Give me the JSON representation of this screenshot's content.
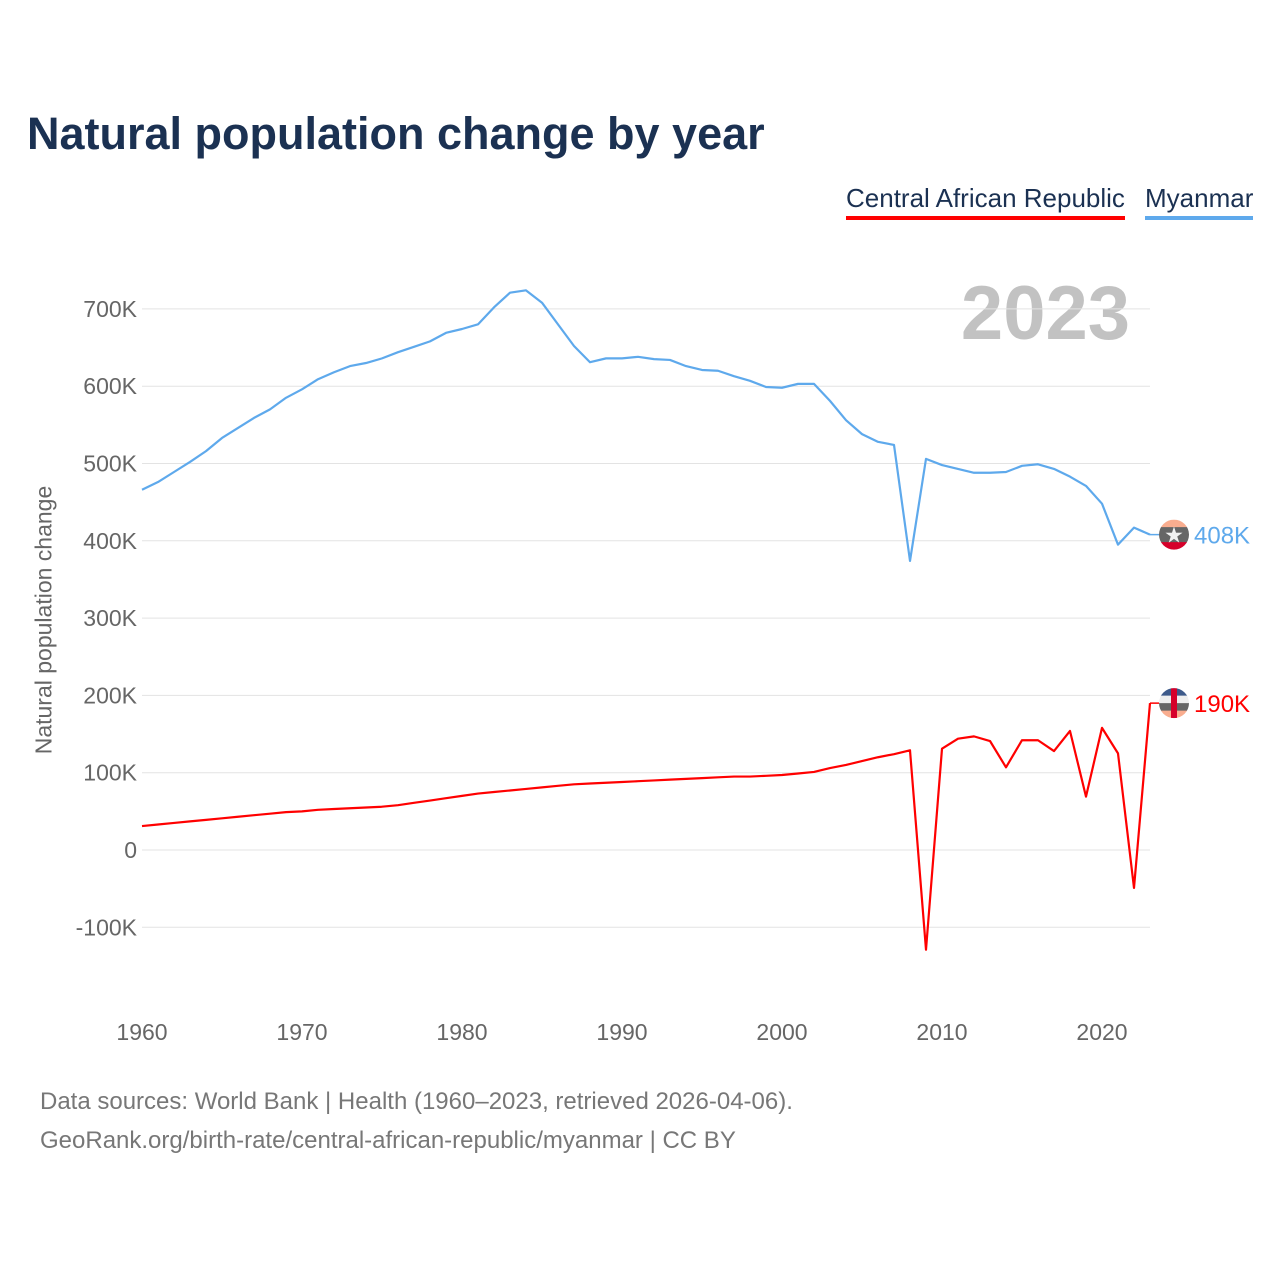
{
  "chart_data": {
    "type": "line",
    "title": "Natural population change by year",
    "ylabel": "Natural population change",
    "xlabel": "",
    "year_label": "2023",
    "xlim": [
      1960,
      2023
    ],
    "ylim": [
      -130,
      760
    ],
    "y_unit": "thousands",
    "grid": true,
    "legend_placement": "top-right",
    "x_ticks": [
      1960,
      1970,
      1980,
      1990,
      2000,
      2010,
      2020
    ],
    "x_tick_labels": [
      "1960",
      "1970",
      "1980",
      "1990",
      "2000",
      "2010",
      "2020"
    ],
    "y_ticks": [
      -100,
      0,
      100,
      200,
      300,
      400,
      500,
      600,
      700
    ],
    "y_tick_labels": [
      "-100K",
      "0",
      "100K",
      "200K",
      "300K",
      "400K",
      "500K",
      "600K",
      "700K"
    ],
    "x": [
      1960,
      1961,
      1962,
      1963,
      1964,
      1965,
      1966,
      1967,
      1968,
      1969,
      1970,
      1971,
      1972,
      1973,
      1974,
      1975,
      1976,
      1977,
      1978,
      1979,
      1980,
      1981,
      1982,
      1983,
      1984,
      1985,
      1986,
      1987,
      1988,
      1989,
      1990,
      1991,
      1992,
      1993,
      1994,
      1995,
      1996,
      1997,
      1998,
      1999,
      2000,
      2001,
      2002,
      2003,
      2004,
      2005,
      2006,
      2007,
      2008,
      2009,
      2010,
      2011,
      2012,
      2013,
      2014,
      2015,
      2016,
      2017,
      2018,
      2019,
      2020,
      2021,
      2022,
      2023
    ],
    "series": [
      {
        "name": "Central African Republic",
        "color": "#ff0000",
        "end_label": "190K",
        "values": [
          31,
          33,
          35,
          37,
          39,
          41,
          43,
          45,
          47,
          49,
          50,
          52,
          53,
          54,
          55,
          56,
          58,
          61,
          64,
          67,
          70,
          73,
          75,
          77,
          79,
          81,
          83,
          85,
          86,
          87,
          88,
          89,
          90,
          91,
          92,
          93,
          94,
          95,
          95,
          96,
          97,
          99,
          101,
          106,
          110,
          115,
          120,
          124,
          129,
          -129,
          131,
          144,
          147,
          141,
          107,
          142,
          142,
          128,
          154,
          69,
          158,
          125,
          -49,
          190
        ]
      },
      {
        "name": "Myanmar",
        "color": "#5ea9ec",
        "end_label": "408K",
        "values": [
          466,
          476,
          489,
          502,
          516,
          533,
          546,
          559,
          570,
          585,
          596,
          609,
          618,
          626,
          630,
          636,
          644,
          651,
          658,
          669,
          674,
          680,
          702,
          721,
          724,
          708,
          680,
          652,
          631,
          636,
          636,
          638,
          635,
          634,
          626,
          621,
          620,
          613,
          607,
          599,
          598,
          603,
          603,
          581,
          556,
          538,
          528,
          524,
          374,
          506,
          498,
          493,
          488,
          488,
          489,
          497,
          499,
          493,
          483,
          471,
          448,
          395,
          417,
          408
        ]
      }
    ]
  },
  "footer": {
    "line1": "Data sources: World Bank | Health (1960–2023, retrieved 2026-04-06).",
    "line2": "GeoRank.org/birth-rate/central-african-republic/myanmar | CC BY"
  }
}
